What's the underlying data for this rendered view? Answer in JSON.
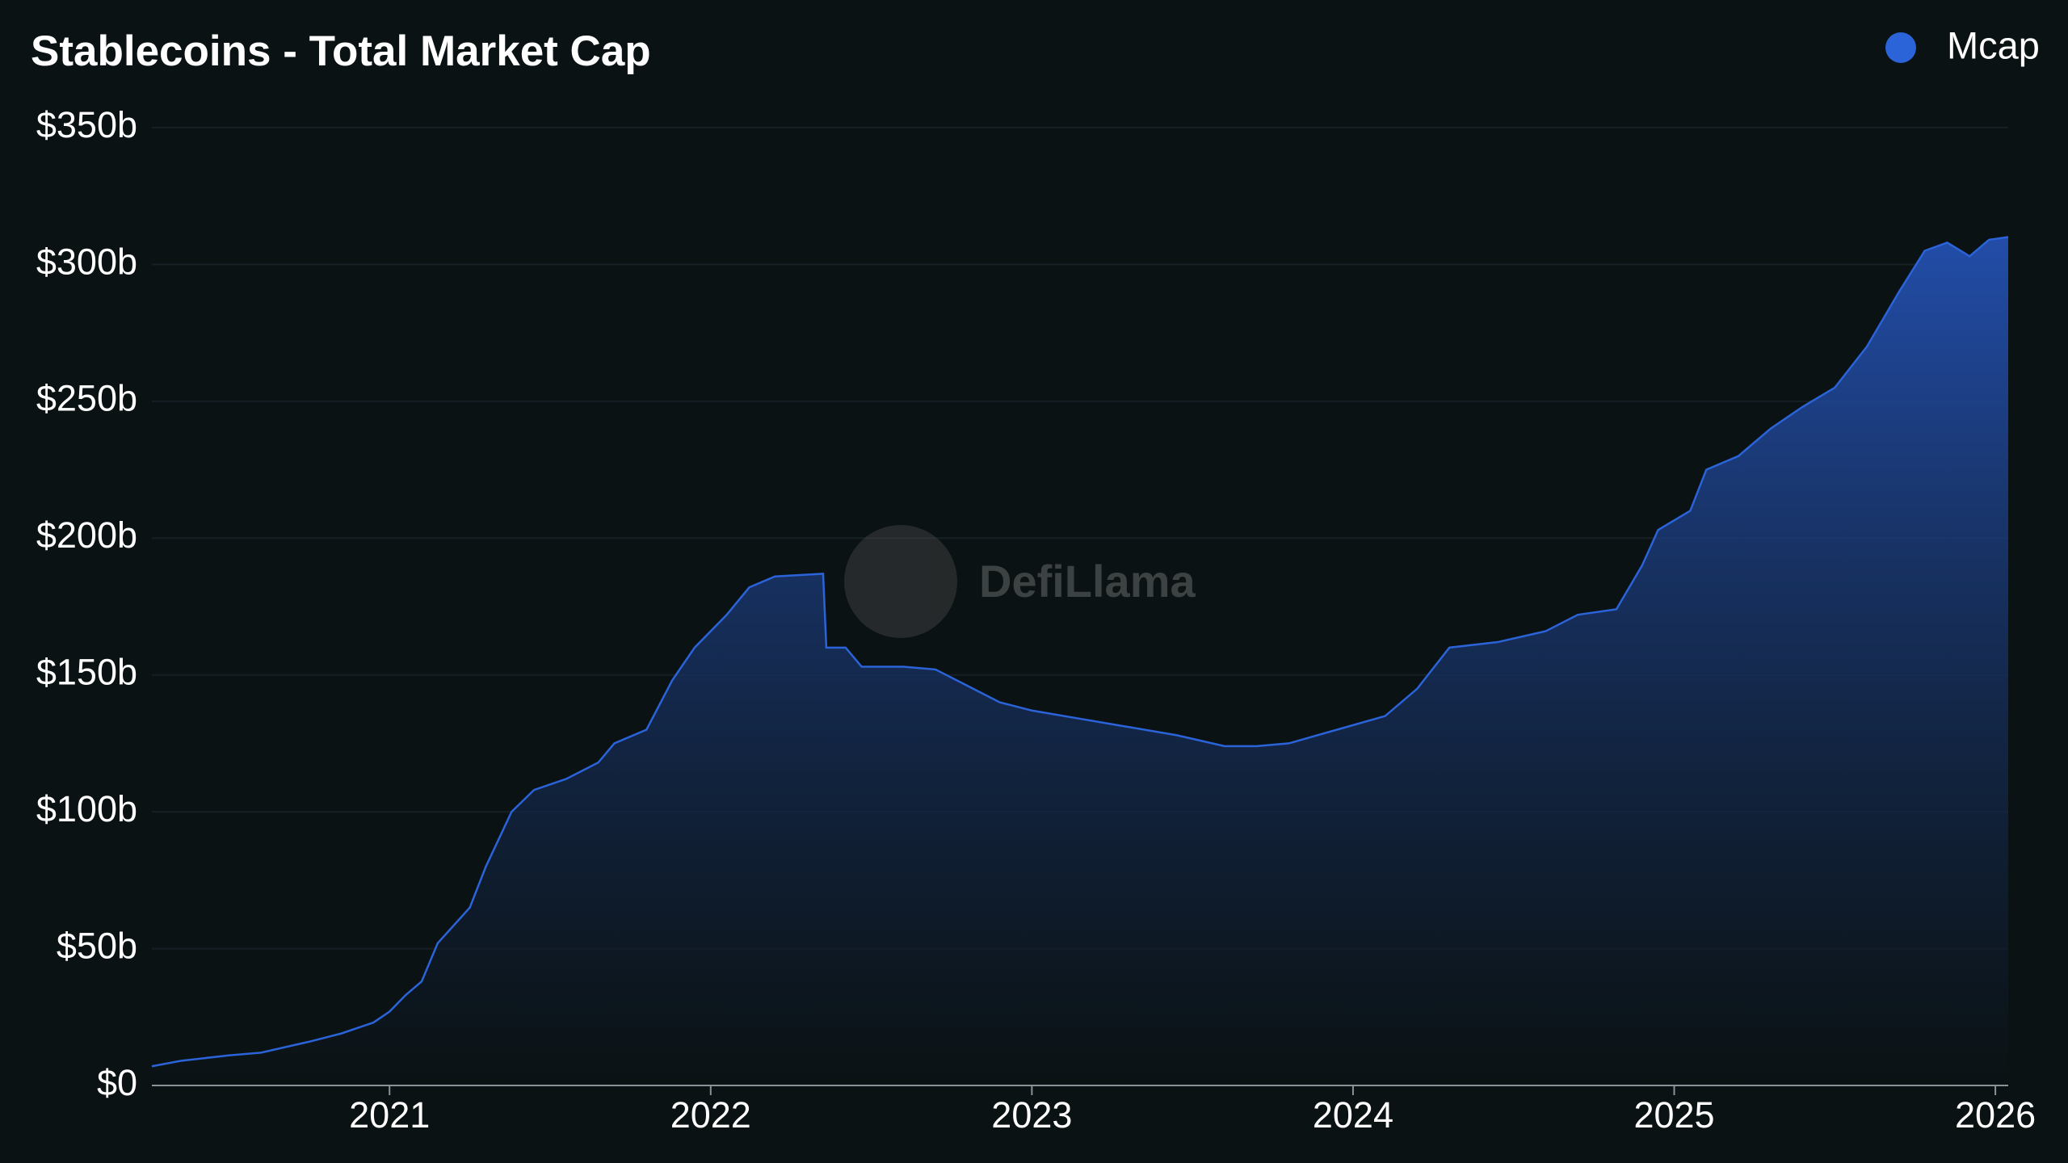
{
  "chart_data": {
    "type": "area",
    "title": "Stablecoins - Total Market Cap",
    "watermark": "DefiLlama",
    "legend_position": "top-right",
    "grid": true,
    "x": [
      2020.26,
      2020.35,
      2020.5,
      2020.6,
      2020.75,
      2020.85,
      2020.95,
      2021.0,
      2021.05,
      2021.1,
      2021.15,
      2021.25,
      2021.3,
      2021.38,
      2021.45,
      2021.55,
      2021.65,
      2021.7,
      2021.8,
      2021.88,
      2021.95,
      2022.05,
      2022.12,
      2022.2,
      2022.35,
      2022.36,
      2022.42,
      2022.47,
      2022.6,
      2022.7,
      2022.8,
      2022.9,
      2023.0,
      2023.15,
      2023.3,
      2023.45,
      2023.6,
      2023.7,
      2023.8,
      2023.95,
      2024.1,
      2024.2,
      2024.3,
      2024.45,
      2024.6,
      2024.7,
      2024.82,
      2024.9,
      2024.95,
      2025.05,
      2025.1,
      2025.2,
      2025.3,
      2025.4,
      2025.5,
      2025.6,
      2025.7,
      2025.78,
      2025.85,
      2025.92,
      2025.98,
      2026.04
    ],
    "series": [
      {
        "name": "Mcap",
        "color": "#2b63d9",
        "values": [
          7,
          9,
          11,
          12,
          16,
          19,
          23,
          27,
          33,
          38,
          52,
          65,
          80,
          100,
          108,
          112,
          118,
          125,
          130,
          148,
          160,
          172,
          182,
          186,
          187,
          160,
          160,
          153,
          153,
          152,
          146,
          140,
          137,
          134,
          131,
          128,
          124,
          124,
          125,
          130,
          135,
          145,
          160,
          162,
          166,
          172,
          174,
          190,
          203,
          210,
          225,
          230,
          240,
          248,
          255,
          270,
          290,
          305,
          308,
          303,
          309,
          310
        ]
      }
    ],
    "xlim": [
      2020.26,
      2026.04
    ],
    "xticks": [
      2021,
      2022,
      2023,
      2024,
      2025,
      2026
    ],
    "ylim": [
      0,
      350
    ],
    "yticks": [
      {
        "value": 0,
        "label": "$0"
      },
      {
        "value": 50,
        "label": "$50b"
      },
      {
        "value": 100,
        "label": "$100b"
      },
      {
        "value": 150,
        "label": "$150b"
      },
      {
        "value": 200,
        "label": "$200b"
      },
      {
        "value": 250,
        "label": "$250b"
      },
      {
        "value": 300,
        "label": "$300b"
      },
      {
        "value": 350,
        "label": "$350b"
      }
    ]
  }
}
